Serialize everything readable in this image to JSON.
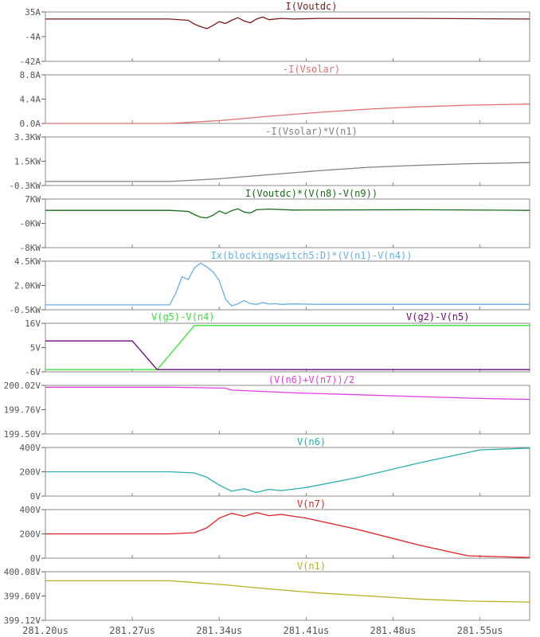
{
  "x_axis": {
    "ticks": [
      "281.20us",
      "281.27us",
      "281.34us",
      "281.41us",
      "281.48us",
      "281.55us"
    ],
    "tick_values": [
      281.2,
      281.27,
      281.34,
      281.41,
      281.48,
      281.55
    ],
    "xlim": [
      281.2,
      281.59
    ]
  },
  "chart_data": [
    {
      "type": "line",
      "title": "I(Voutdc)",
      "yticks": [
        "35A",
        "-4A",
        "-42A"
      ],
      "ylim": [
        -42,
        35
      ],
      "series": [
        {
          "name": "I(Voutdc)",
          "color": "#7a1a1a",
          "x": [
            281.2,
            281.3,
            281.315,
            281.32,
            281.325,
            281.33,
            281.335,
            281.34,
            281.345,
            281.35,
            281.355,
            281.36,
            281.365,
            281.37,
            281.375,
            281.38,
            281.39,
            281.4,
            281.42,
            281.5,
            281.59
          ],
          "y": [
            24,
            24,
            22,
            16,
            12,
            9,
            14,
            20,
            17,
            22,
            26,
            21,
            18,
            24,
            27,
            23,
            25,
            24,
            25,
            25,
            24
          ]
        }
      ]
    },
    {
      "type": "line",
      "title": "-I(Vsolar)",
      "yticks": [
        "8.8A",
        "4.4A",
        "0.0A"
      ],
      "ylim": [
        0,
        8.8
      ],
      "series": [
        {
          "name": "-I(Vsolar)",
          "color": "#e07070",
          "x": [
            281.2,
            281.3,
            281.34,
            281.38,
            281.42,
            281.46,
            281.5,
            281.54,
            281.59
          ],
          "y": [
            0,
            0,
            0.5,
            1.3,
            2.0,
            2.6,
            3.0,
            3.3,
            3.5
          ]
        }
      ]
    },
    {
      "type": "line",
      "title": "-I(Vsolar)*V(n1)",
      "yticks": [
        "3.3KW",
        "1.5KW",
        "-0.3KW"
      ],
      "ylim": [
        -0.3,
        3.3
      ],
      "series": [
        {
          "name": "-I(Vsolar)*V(n1)",
          "color": "#808080",
          "x": [
            281.2,
            281.3,
            281.34,
            281.38,
            281.42,
            281.46,
            281.5,
            281.54,
            281.59
          ],
          "y": [
            0,
            0,
            0.2,
            0.5,
            0.8,
            1.05,
            1.2,
            1.32,
            1.4
          ]
        }
      ]
    },
    {
      "type": "line",
      "title": "I(Voutdc)*(V(n8)-V(n9))",
      "yticks": [
        "7KW",
        "-0KW",
        "-8KW"
      ],
      "ylim": [
        -8,
        7
      ],
      "series": [
        {
          "name": "I(Voutdc)*(V(n8)-V(n9))",
          "color": "#1a6b1a",
          "x": [
            281.2,
            281.3,
            281.315,
            281.32,
            281.325,
            281.33,
            281.335,
            281.34,
            281.345,
            281.35,
            281.355,
            281.36,
            281.365,
            281.37,
            281.38,
            281.4,
            281.5,
            281.59
          ],
          "y": [
            3.5,
            3.5,
            3.2,
            2.2,
            1.4,
            1.2,
            2.0,
            3.3,
            2.5,
            3.4,
            4.0,
            3.0,
            2.7,
            3.7,
            3.9,
            3.6,
            3.7,
            3.5
          ]
        }
      ]
    },
    {
      "type": "line",
      "title": "Ix(blockingswitch5:D)*(V(n1)-V(n4))",
      "yticks": [
        "4.5KW",
        "2.0KW",
        "-0.5KW"
      ],
      "ylim": [
        -0.5,
        4.5
      ],
      "series": [
        {
          "name": "Ix(blockingswitch5:D)*(V(n1)-V(n4))",
          "color": "#6aaee0",
          "x": [
            281.2,
            281.3,
            281.305,
            281.31,
            281.315,
            281.32,
            281.325,
            281.33,
            281.335,
            281.34,
            281.345,
            281.35,
            281.355,
            281.36,
            281.365,
            281.37,
            281.375,
            281.38,
            281.385,
            281.39,
            281.4,
            281.42,
            281.59
          ],
          "y": [
            0,
            0,
            1.2,
            2.9,
            2.6,
            3.8,
            4.3,
            3.9,
            3.4,
            2.5,
            0.6,
            -0.1,
            0.1,
            0.45,
            0.15,
            0.05,
            0.25,
            0.08,
            0.12,
            0.05,
            0.1,
            0.05,
            0.05
          ]
        }
      ]
    },
    {
      "type": "line",
      "title": "",
      "yticks": [
        "16V",
        "5V",
        "-6V"
      ],
      "ylim": [
        -6,
        16
      ],
      "labels": [
        "V(g5)-V(n4)",
        "V(g2)-V(n5)"
      ],
      "series": [
        {
          "name": "V(g5)-V(n4)",
          "color": "#3be03b",
          "x": [
            281.2,
            281.29,
            281.32,
            281.59
          ],
          "y": [
            -5,
            -5,
            15,
            15
          ]
        },
        {
          "name": "V(g2)-V(n5)",
          "color": "#6a0a7a",
          "x": [
            281.2,
            281.27,
            281.29,
            281.59
          ],
          "y": [
            8,
            8,
            -5,
            -5
          ]
        }
      ]
    },
    {
      "type": "line",
      "title": "(V(n6)+V(n7))/2",
      "yticks": [
        "200.02V",
        "199.76V",
        "199.50V"
      ],
      "ylim": [
        199.5,
        200.02
      ],
      "series": [
        {
          "name": "(V(n6)+V(n7))/2",
          "color": "#e040e0",
          "x": [
            281.2,
            281.3,
            281.345,
            281.35,
            281.4,
            281.45,
            281.5,
            281.55,
            281.59
          ],
          "y": [
            200.0,
            200.0,
            199.99,
            199.97,
            199.94,
            199.92,
            199.9,
            199.88,
            199.87
          ]
        }
      ]
    },
    {
      "type": "line",
      "title": "V(n6)",
      "yticks": [
        "400V",
        "200V",
        "0V"
      ],
      "ylim": [
        0,
        400
      ],
      "series": [
        {
          "name": "V(n6)",
          "color": "#2aaeae",
          "x": [
            281.2,
            281.3,
            281.32,
            281.33,
            281.34,
            281.35,
            281.36,
            281.37,
            281.38,
            281.39,
            281.41,
            281.45,
            281.5,
            281.55,
            281.59
          ],
          "y": [
            200,
            200,
            190,
            155,
            90,
            40,
            60,
            30,
            55,
            45,
            70,
            150,
            270,
            380,
            395
          ]
        }
      ]
    },
    {
      "type": "line",
      "title": "V(n7)",
      "yticks": [
        "400V",
        "200V",
        "0V"
      ],
      "ylim": [
        0,
        400
      ],
      "series": [
        {
          "name": "V(n7)",
          "color": "#e02020",
          "x": [
            281.2,
            281.3,
            281.32,
            281.33,
            281.34,
            281.35,
            281.36,
            281.37,
            281.38,
            281.39,
            281.41,
            281.45,
            281.5,
            281.54,
            281.59
          ],
          "y": [
            200,
            200,
            210,
            250,
            330,
            370,
            345,
            375,
            350,
            360,
            330,
            240,
            110,
            20,
            5
          ]
        }
      ]
    },
    {
      "type": "line",
      "title": "V(n1)",
      "yticks": [
        "400.08V",
        "399.60V",
        "399.12V"
      ],
      "ylim": [
        399.12,
        400.08
      ],
      "series": [
        {
          "name": "V(n1)",
          "color": "#b8b020",
          "x": [
            281.2,
            281.3,
            281.34,
            281.38,
            281.42,
            281.46,
            281.5,
            281.54,
            281.59
          ],
          "y": [
            399.9,
            399.9,
            399.83,
            399.74,
            399.66,
            399.6,
            399.54,
            399.5,
            399.48
          ]
        }
      ]
    }
  ]
}
